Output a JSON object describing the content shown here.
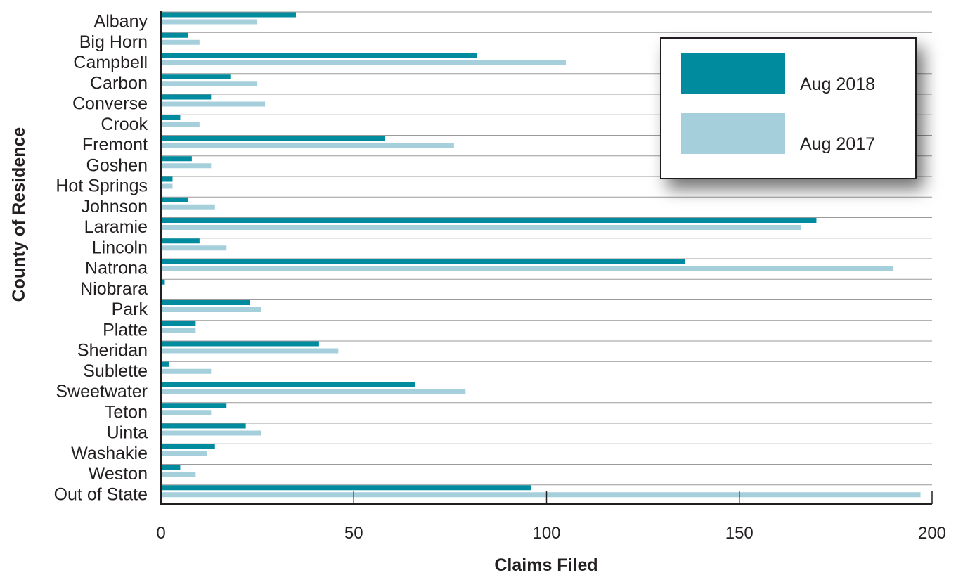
{
  "chart_data": {
    "type": "bar",
    "orientation": "horizontal",
    "xlabel": "Claims Filed",
    "ylabel": "County of Residence",
    "xlim": [
      0,
      200
    ],
    "xticks": [
      0,
      50,
      100,
      150,
      200
    ],
    "grid": "horizontal",
    "legend_position": "top-right",
    "categories": [
      "Albany",
      "Big Horn",
      "Campbell",
      "Carbon",
      "Converse",
      "Crook",
      "Fremont",
      "Goshen",
      "Hot Springs",
      "Johnson",
      "Laramie",
      "Lincoln",
      "Natrona",
      "Niobrara",
      "Park",
      "Platte",
      "Sheridan",
      "Sublette",
      "Sweetwater",
      "Teton",
      "Uinta",
      "Washakie",
      "Weston",
      "Out of State"
    ],
    "series": [
      {
        "name": "Aug 2018",
        "color": "#008c9e",
        "values": [
          35,
          7,
          82,
          18,
          13,
          5,
          58,
          8,
          3,
          7,
          170,
          10,
          136,
          1,
          23,
          9,
          41,
          2,
          66,
          17,
          22,
          14,
          5,
          96
        ]
      },
      {
        "name": "Aug 2017",
        "color": "#a6cfdc",
        "values": [
          25,
          10,
          105,
          25,
          27,
          10,
          76,
          13,
          3,
          14,
          166,
          17,
          190,
          0,
          26,
          9,
          46,
          13,
          79,
          13,
          26,
          12,
          9,
          197
        ]
      }
    ]
  }
}
